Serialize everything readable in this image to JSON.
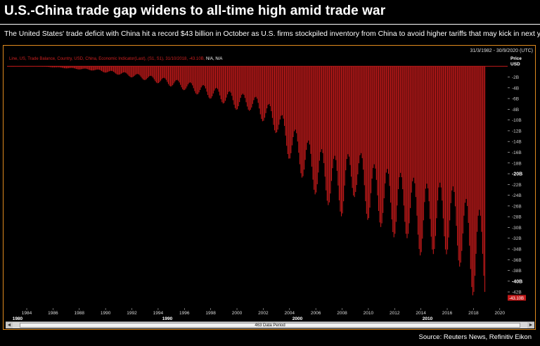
{
  "header": {
    "title": "U.S.-China trade gap widens to all-time high amid trade war",
    "subtitle": "The United States' trade deficit with China hit a record $43 billion in October as U.S. firms stockpiled inventory from China to avoid higher tariffs that may kick in next year"
  },
  "terminal": {
    "date_range": "31/3/1982 - 30/9/2020 (UTC)",
    "legend_main": "Line, US, Trade Balance, Country, USD, China, Economic Indicator(Last), (S1, S1), 31/10/2018, -43.10B",
    "legend_na": "N/A, N/A",
    "scroll_label": "463 Data Period",
    "left_arrow": "◄",
    "right_arrow": "►"
  },
  "footer": {
    "source": "Source:  Reuters News, Refinitiv Eikon"
  },
  "chart_data": {
    "type": "bar",
    "color": "#c41a1a",
    "y_unit_label": "Price\nUSD",
    "last_value_label": "-43.10B",
    "ylim": [
      -45,
      2
    ],
    "xlim": [
      1982.5,
      2020.6
    ],
    "y_ticks": [
      "-2B",
      "-4B",
      "-6B",
      "-8B",
      "-10B",
      "-12B",
      "-14B",
      "-16B",
      "-18B",
      "-20B",
      "-22B",
      "-24B",
      "-26B",
      "-28B",
      "-30B",
      "-32B",
      "-34B",
      "-36B",
      "-38B",
      "-40B",
      "-42B"
    ],
    "y_tick_values": [
      -2,
      -4,
      -6,
      -8,
      -10,
      -12,
      -14,
      -16,
      -18,
      -20,
      -22,
      -24,
      -26,
      -28,
      -30,
      -32,
      -34,
      -36,
      -38,
      -40,
      -42
    ],
    "x_ticks": [
      "1984",
      "1986",
      "1988",
      "1990",
      "1992",
      "1994",
      "1996",
      "1998",
      "2000",
      "2002",
      "2004",
      "2006",
      "2008",
      "2010",
      "2012",
      "2014",
      "2016",
      "2018",
      "2020"
    ],
    "x_tick_values": [
      1984,
      1986,
      1988,
      1990,
      1992,
      1994,
      1996,
      1998,
      2000,
      2002,
      2004,
      2006,
      2008,
      2010,
      2012,
      2014,
      2016,
      2018,
      2020
    ],
    "decades": [
      "1980",
      "1990",
      "2000",
      "2010"
    ],
    "annual_minimum_deficit_B": {
      "years": [
        1985,
        1986,
        1987,
        1988,
        1989,
        1990,
        1991,
        1992,
        1993,
        1994,
        1995,
        1996,
        1997,
        1998,
        1999,
        2000,
        2001,
        2002,
        2003,
        2004,
        2005,
        2006,
        2007,
        2008,
        2009,
        2010,
        2011,
        2012,
        2013,
        2014,
        2015,
        2016,
        2017,
        2018
      ],
      "values": [
        -0.05,
        -0.2,
        -0.4,
        -0.6,
        -0.8,
        -1.2,
        -1.6,
        -2.1,
        -2.6,
        -3.2,
        -3.8,
        -4.5,
        -5.3,
        -6.1,
        -7.0,
        -8.2,
        -8.3,
        -10.4,
        -12.6,
        -17.6,
        -21.0,
        -24.1,
        -26.0,
        -28.1,
        -24.0,
        -29.0,
        -30.0,
        -32.0,
        -32.0,
        -35.5,
        -34.9,
        -35.0,
        -37.5,
        -43.1
      ]
    }
  }
}
